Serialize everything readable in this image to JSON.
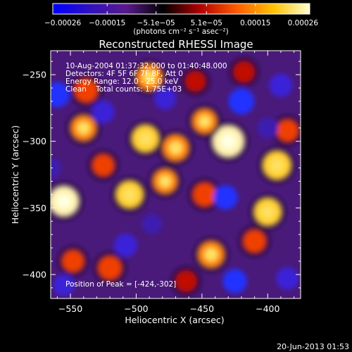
{
  "chart_data": {
    "type": "heatmap",
    "title": "Reconstructed RHESSI Image",
    "xlabel": "Heliocentric X (arcsec)",
    "ylabel": "Heliocentric Y (arcsec)",
    "xlim": [
      -565,
      -375
    ],
    "ylim": [
      -418,
      -232
    ],
    "x_ticks": [
      -550,
      -500,
      -450,
      -400
    ],
    "y_ticks": [
      -250,
      -300,
      -350,
      -400
    ],
    "x_tick_labels": [
      "−550",
      "−500",
      "−450",
      "−400"
    ],
    "y_tick_labels": [
      "−250",
      "−300",
      "−350",
      "−400"
    ],
    "colorbar": {
      "min": -0.00026,
      "max": 0.00026,
      "tick_values": [
        -0.00026,
        -0.00015,
        -5.1e-05,
        5.1e-05,
        0.00015,
        0.00026
      ],
      "tick_labels": [
        "−0.00026",
        "−0.00015",
        "−5.1e−05",
        "5.1e−05",
        "0.00015",
        "0.00026"
      ],
      "unit_label": "(photons cm⁻² s⁻¹ asec⁻²)",
      "colors": [
        "#0000ff",
        "#3010c0",
        "#5a1a8c",
        "#000000",
        "#b00000",
        "#ff5a00",
        "#ffc000",
        "#ffffd0"
      ]
    },
    "annotations": [
      "10-Aug-2004 01:37:32.000 to 01:40:48.000",
      "Detectors: 4F 5F 6F 7F 8F, Att 0",
      "Energy Range: 12.0 - 25.0 keV",
      "Clean    Total counts: 1.75E+03",
      "Position of Peak = [-424,-302]"
    ],
    "peak_position": [
      -424,
      -302
    ],
    "blobs": [
      {
        "x": -430,
        "y": -300,
        "v": 1.0
      },
      {
        "x": -470,
        "y": -305,
        "v": 0.7
      },
      {
        "x": -493,
        "y": -298,
        "v": 0.75
      },
      {
        "x": -448,
        "y": -285,
        "v": 0.6
      },
      {
        "x": -540,
        "y": -290,
        "v": 0.65
      },
      {
        "x": -555,
        "y": -345,
        "v": 0.9
      },
      {
        "x": -538,
        "y": -262,
        "v": 0.55
      },
      {
        "x": -490,
        "y": -252,
        "v": 0.7
      },
      {
        "x": -505,
        "y": -340,
        "v": 0.75
      },
      {
        "x": -478,
        "y": -330,
        "v": 0.6
      },
      {
        "x": -448,
        "y": -340,
        "v": 0.55
      },
      {
        "x": -443,
        "y": -385,
        "v": 0.7
      },
      {
        "x": -410,
        "y": -375,
        "v": 0.5
      },
      {
        "x": -400,
        "y": -353,
        "v": 0.75
      },
      {
        "x": -393,
        "y": -318,
        "v": 0.8
      },
      {
        "x": -385,
        "y": -292,
        "v": 0.45
      },
      {
        "x": -520,
        "y": -395,
        "v": 0.55
      },
      {
        "x": -548,
        "y": -390,
        "v": 0.45
      },
      {
        "x": -462,
        "y": -405,
        "v": 0.4
      },
      {
        "x": -418,
        "y": -248,
        "v": 0.4
      },
      {
        "x": -525,
        "y": -318,
        "v": 0.45
      },
      {
        "x": -455,
        "y": -255,
        "v": 0.35
      },
      {
        "x": -560,
        "y": -265,
        "v": -0.65
      },
      {
        "x": -525,
        "y": -278,
        "v": -0.5
      },
      {
        "x": -420,
        "y": -270,
        "v": -0.7
      },
      {
        "x": -390,
        "y": -258,
        "v": -0.55
      },
      {
        "x": -400,
        "y": -290,
        "v": -0.4
      },
      {
        "x": -432,
        "y": -342,
        "v": -0.6
      },
      {
        "x": -425,
        "y": -405,
        "v": -0.6
      },
      {
        "x": -385,
        "y": -403,
        "v": -0.5
      },
      {
        "x": -508,
        "y": -378,
        "v": -0.55
      },
      {
        "x": -555,
        "y": -408,
        "v": -0.45
      },
      {
        "x": -478,
        "y": -268,
        "v": -0.45
      },
      {
        "x": -565,
        "y": -320,
        "v": -0.4
      },
      {
        "x": -488,
        "y": -362,
        "v": -0.35
      }
    ]
  },
  "footer": {
    "date": "20-Jun-2013 01:53"
  }
}
